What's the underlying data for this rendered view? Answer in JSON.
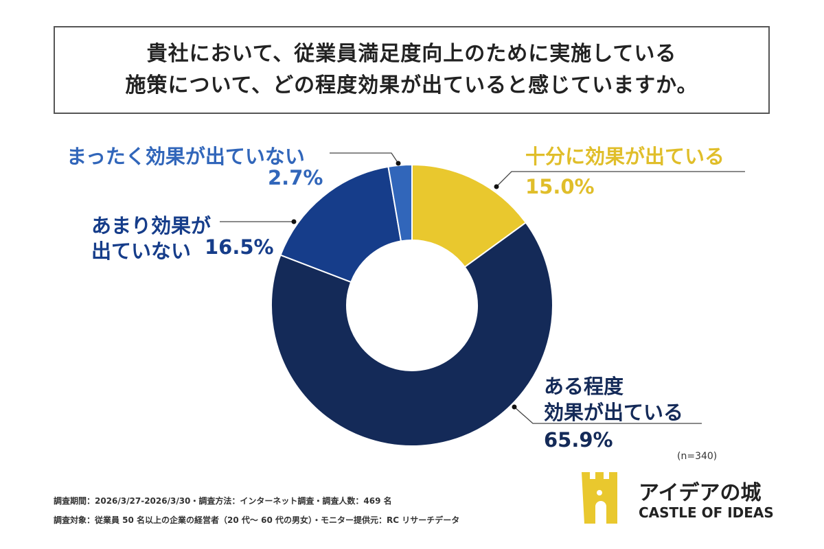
{
  "title": {
    "line1": "貴社において、従業員満足度向上のために実施している",
    "line2": "施策について、どの程度効果が出ていると感じていますか。"
  },
  "chart_data": {
    "type": "pie",
    "donut": true,
    "start": "top, clockwise",
    "series": [
      {
        "label": "十分に効果が出ている",
        "value": 15.0,
        "value_label": "15.0%",
        "color": "#E9C82E"
      },
      {
        "label": "ある程度効果が出ている",
        "value": 65.9,
        "value_label": "65.9%",
        "color": "#142A58"
      },
      {
        "label": "あまり効果が出ていない",
        "value": 16.5,
        "value_label": "16.5%",
        "color": "#163D8A"
      },
      {
        "label": "まったく効果が出ていない",
        "value": 2.7,
        "value_label": "2.7%",
        "color": "#3166BA"
      }
    ]
  },
  "labels": {
    "s0": "十分に効果が出ている",
    "s1a": "ある程度",
    "s1b": "効果が出ている",
    "s2a": "あまり効果が",
    "s2b": "出ていない",
    "s3": "まったく効果が出ていない"
  },
  "sample": "(n=340)",
  "footnotes": {
    "line1": "調査期間：2026/3/27-2026/3/30・調査方法：インターネット調査・調査人数：469 名",
    "line2": "調査対象：従業員 50 名以上の企業の経営者（20 代～ 60 代の男女）・モニター提供元：RC リサーチデータ"
  },
  "logo": {
    "jp": "アイデアの城",
    "en": "CASTLE OF IDEAS",
    "color": "#E9C82E"
  }
}
